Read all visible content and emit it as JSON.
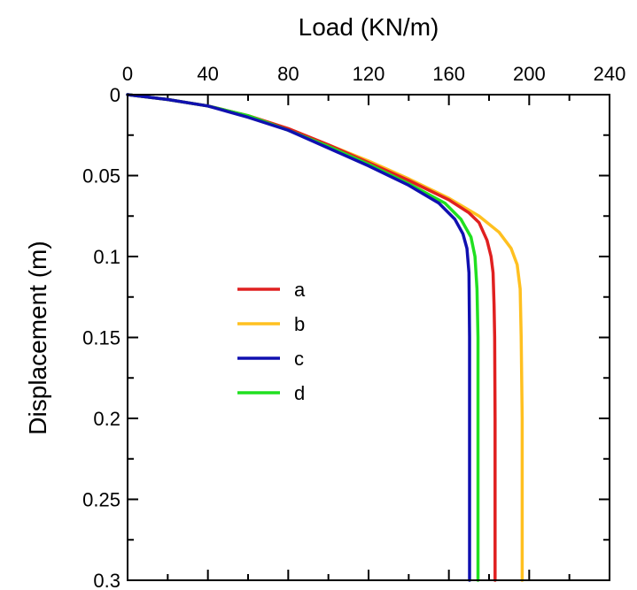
{
  "chart_data": {
    "type": "line",
    "title": "",
    "xlabel": "Load (KN/m)",
    "ylabel": "Displacement (m)",
    "x_axis_position": "top",
    "y_axis_inverted": true,
    "xlim": [
      0,
      240
    ],
    "ylim": [
      0,
      0.3
    ],
    "x_ticks": [
      0,
      40,
      80,
      120,
      160,
      200,
      240
    ],
    "y_ticks": [
      0,
      0.05,
      0.1,
      0.15,
      0.2,
      0.25,
      0.3
    ],
    "x_tick_labels": [
      "0",
      "40",
      "80",
      "120",
      "160",
      "200",
      "240"
    ],
    "y_tick_labels": [
      "0",
      "0.05",
      "0.1",
      "0.15",
      "0.2",
      "0.25",
      "0.3"
    ],
    "grid": false,
    "legend_position": "center-left",
    "series": [
      {
        "name": "a",
        "color": "#e02020",
        "points": [
          [
            0,
            0
          ],
          [
            20,
            0.003
          ],
          [
            40,
            0.007
          ],
          [
            60,
            0.013
          ],
          [
            80,
            0.021
          ],
          [
            100,
            0.031
          ],
          [
            120,
            0.042
          ],
          [
            140,
            0.053
          ],
          [
            160,
            0.065
          ],
          [
            170,
            0.073
          ],
          [
            175,
            0.079
          ],
          [
            179,
            0.09
          ],
          [
            181,
            0.1
          ],
          [
            182,
            0.11
          ],
          [
            182.5,
            0.13
          ],
          [
            182.8,
            0.15
          ],
          [
            183,
            0.2
          ],
          [
            183,
            0.25
          ],
          [
            183,
            0.3
          ]
        ]
      },
      {
        "name": "b",
        "color": "#ffc020",
        "points": [
          [
            0,
            0
          ],
          [
            20,
            0.003
          ],
          [
            40,
            0.007
          ],
          [
            60,
            0.013
          ],
          [
            80,
            0.021
          ],
          [
            100,
            0.031
          ],
          [
            120,
            0.041
          ],
          [
            140,
            0.052
          ],
          [
            160,
            0.064
          ],
          [
            175,
            0.075
          ],
          [
            185,
            0.085
          ],
          [
            191,
            0.095
          ],
          [
            194,
            0.105
          ],
          [
            195.5,
            0.12
          ],
          [
            196,
            0.15
          ],
          [
            196.5,
            0.2
          ],
          [
            196.5,
            0.25
          ],
          [
            196.5,
            0.3
          ]
        ]
      },
      {
        "name": "c",
        "color": "#1010b0",
        "points": [
          [
            0,
            0
          ],
          [
            20,
            0.003
          ],
          [
            40,
            0.007
          ],
          [
            60,
            0.014
          ],
          [
            80,
            0.022
          ],
          [
            100,
            0.033
          ],
          [
            120,
            0.044
          ],
          [
            140,
            0.056
          ],
          [
            155,
            0.067
          ],
          [
            163,
            0.077
          ],
          [
            167,
            0.086
          ],
          [
            169,
            0.095
          ],
          [
            170,
            0.11
          ],
          [
            170.3,
            0.15
          ],
          [
            170.3,
            0.2
          ],
          [
            170.3,
            0.25
          ],
          [
            170.3,
            0.3
          ]
        ]
      },
      {
        "name": "d",
        "color": "#20e020",
        "points": [
          [
            0,
            0
          ],
          [
            20,
            0.003
          ],
          [
            40,
            0.007
          ],
          [
            60,
            0.013
          ],
          [
            80,
            0.022
          ],
          [
            100,
            0.032
          ],
          [
            120,
            0.043
          ],
          [
            140,
            0.055
          ],
          [
            158,
            0.067
          ],
          [
            166,
            0.077
          ],
          [
            171,
            0.088
          ],
          [
            173,
            0.1
          ],
          [
            174,
            0.12
          ],
          [
            174.5,
            0.15
          ],
          [
            174.5,
            0.2
          ],
          [
            174.5,
            0.25
          ],
          [
            174.5,
            0.3
          ]
        ]
      }
    ]
  }
}
